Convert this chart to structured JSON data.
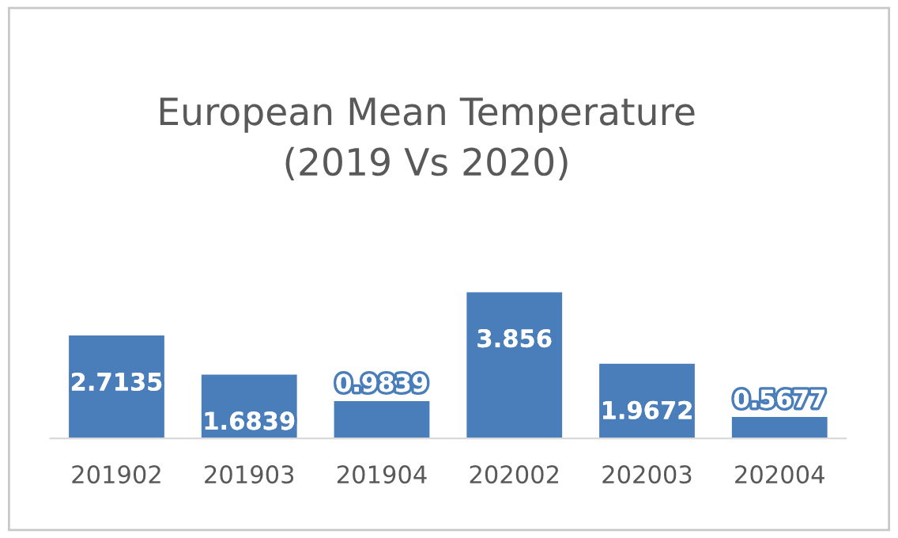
{
  "chart_data": {
    "type": "bar",
    "title": "European Mean Temperature\n(2019 Vs 2020)",
    "categories": [
      "201902",
      "201903",
      "201904",
      "202002",
      "202003",
      "202004"
    ],
    "values": [
      2.7135,
      1.6839,
      0.9839,
      3.856,
      1.9672,
      0.5677
    ],
    "color": "#4a7ebb",
    "data_labels": true,
    "grid": false,
    "legend": false
  }
}
